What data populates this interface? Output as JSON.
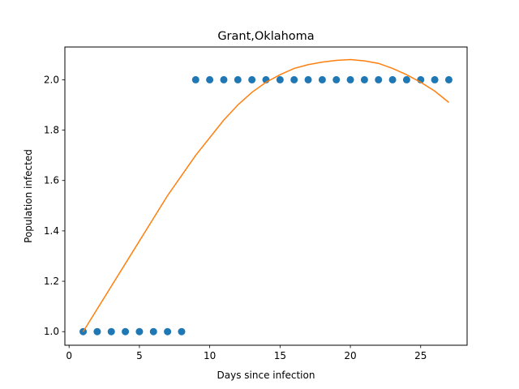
{
  "chart_data": {
    "type": "scatter",
    "title": "Grant,Oklahoma",
    "xlabel": "Days since infection",
    "ylabel": "Population infected",
    "xlim": [
      -0.3,
      28.3
    ],
    "ylim": [
      0.946,
      2.13
    ],
    "xticks": [
      0,
      5,
      10,
      15,
      20,
      25
    ],
    "yticks": [
      1.0,
      1.2,
      1.4,
      1.6,
      1.8,
      2.0
    ],
    "ytick_labels": [
      "1.0",
      "1.2",
      "1.4",
      "1.6",
      "1.8",
      "2.0"
    ],
    "grid": false,
    "colors": {
      "points": "#1f77b4",
      "fit": "#ff7f0e"
    },
    "series": [
      {
        "kind": "scatter",
        "x": [
          1,
          2,
          3,
          4,
          5,
          6,
          7,
          8,
          9,
          10,
          11,
          12,
          13,
          14,
          15,
          16,
          17,
          18,
          19,
          20,
          21,
          22,
          23,
          24,
          25,
          26,
          27
        ],
        "y": [
          1,
          1,
          1,
          1,
          1,
          1,
          1,
          1,
          2,
          2,
          2,
          2,
          2,
          2,
          2,
          2,
          2,
          2,
          2,
          2,
          2,
          2,
          2,
          2,
          2,
          2,
          2
        ]
      },
      {
        "kind": "line",
        "x": [
          1,
          2,
          3,
          4,
          5,
          6,
          7,
          8,
          9,
          10,
          11,
          12,
          13,
          14,
          15,
          16,
          17,
          18,
          19,
          20,
          21,
          22,
          23,
          24,
          25,
          26,
          27
        ],
        "y": [
          1.0,
          1.09,
          1.18,
          1.27,
          1.36,
          1.45,
          1.54,
          1.62,
          1.7,
          1.77,
          1.84,
          1.9,
          1.95,
          1.99,
          2.02,
          2.045,
          2.06,
          2.07,
          2.077,
          2.08,
          2.075,
          2.065,
          2.045,
          2.02,
          1.99,
          1.955,
          1.91
        ]
      }
    ]
  }
}
